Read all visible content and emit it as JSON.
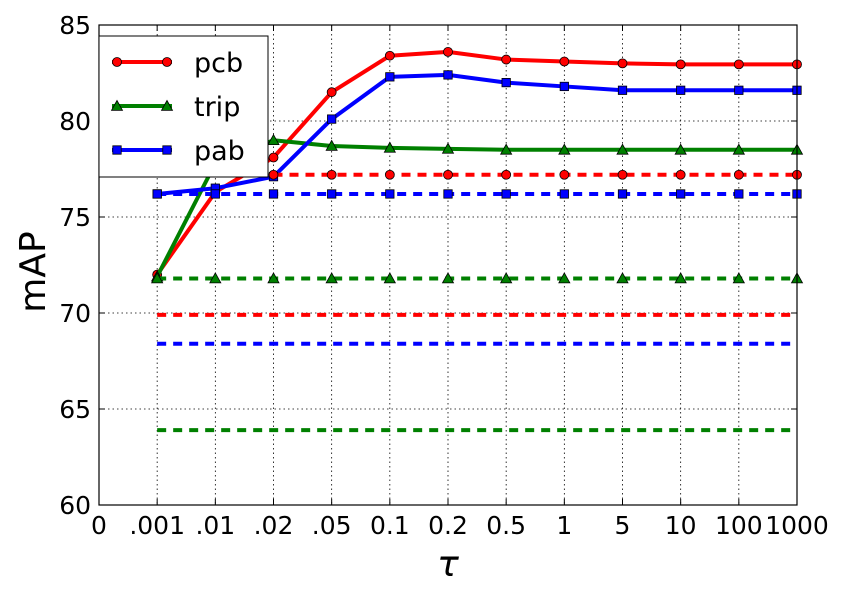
{
  "chart_data": {
    "type": "line",
    "xlabel": "τ",
    "ylabel": "mAP",
    "categories": [
      "0",
      ".001",
      ".01",
      ".02",
      ".05",
      "0.1",
      "0.2",
      "0.5",
      "1",
      "5",
      "10",
      "100",
      "1000"
    ],
    "yticks": [
      "60",
      "65",
      "70",
      "75",
      "80",
      "85"
    ],
    "ylim": [
      60,
      85
    ],
    "grid": true,
    "legend_position": "top-left",
    "series": [
      {
        "name": "pcb",
        "color": "#ff0000",
        "style": "solid",
        "marker": "circle",
        "legend": true,
        "values": [
          null,
          72.0,
          76.3,
          78.1,
          81.5,
          83.4,
          83.6,
          83.2,
          83.1,
          83.0,
          82.95,
          82.95,
          82.95
        ]
      },
      {
        "name": "trip",
        "color": "#008000",
        "style": "solid",
        "marker": "triangle",
        "legend": true,
        "values": [
          null,
          71.9,
          77.8,
          79.0,
          78.7,
          78.6,
          78.55,
          78.5,
          78.5,
          78.5,
          78.5,
          78.5,
          78.5
        ]
      },
      {
        "name": "pab",
        "color": "#0000ff",
        "style": "solid",
        "marker": "square",
        "legend": true,
        "values": [
          null,
          76.2,
          76.5,
          77.1,
          80.1,
          82.3,
          82.4,
          82.0,
          81.8,
          81.6,
          81.6,
          81.6,
          81.6
        ]
      },
      {
        "color": "#ff0000",
        "style": "dashed",
        "marker": "circle",
        "legend": false,
        "values": [
          null,
          null,
          null,
          77.2,
          77.2,
          77.2,
          77.2,
          77.2,
          77.2,
          77.2,
          77.2,
          77.2,
          77.2
        ]
      },
      {
        "color": "#0000ff",
        "style": "dashed",
        "marker": "square",
        "legend": false,
        "values": [
          null,
          76.2,
          76.2,
          76.2,
          76.2,
          76.2,
          76.2,
          76.2,
          76.2,
          76.2,
          76.2,
          76.2,
          76.2
        ]
      },
      {
        "color": "#008000",
        "style": "dashed",
        "marker": "triangle",
        "legend": false,
        "values": [
          null,
          71.8,
          71.8,
          71.8,
          71.8,
          71.8,
          71.8,
          71.8,
          71.8,
          71.8,
          71.8,
          71.8,
          71.8
        ]
      },
      {
        "color": "#ff0000",
        "style": "dashed",
        "marker": "none",
        "legend": false,
        "values": [
          null,
          69.9,
          69.9,
          69.9,
          69.9,
          69.9,
          69.9,
          69.9,
          69.9,
          69.9,
          69.9,
          69.9,
          69.9
        ]
      },
      {
        "color": "#0000ff",
        "style": "dashed",
        "marker": "none",
        "legend": false,
        "values": [
          null,
          68.4,
          68.4,
          68.4,
          68.4,
          68.4,
          68.4,
          68.4,
          68.4,
          68.4,
          68.4,
          68.4,
          68.4
        ]
      },
      {
        "color": "#008000",
        "style": "dashed",
        "marker": "none",
        "legend": false,
        "values": [
          null,
          63.9,
          63.9,
          63.9,
          63.9,
          63.9,
          63.9,
          63.9,
          63.9,
          63.9,
          63.9,
          63.9,
          63.9
        ]
      }
    ]
  }
}
